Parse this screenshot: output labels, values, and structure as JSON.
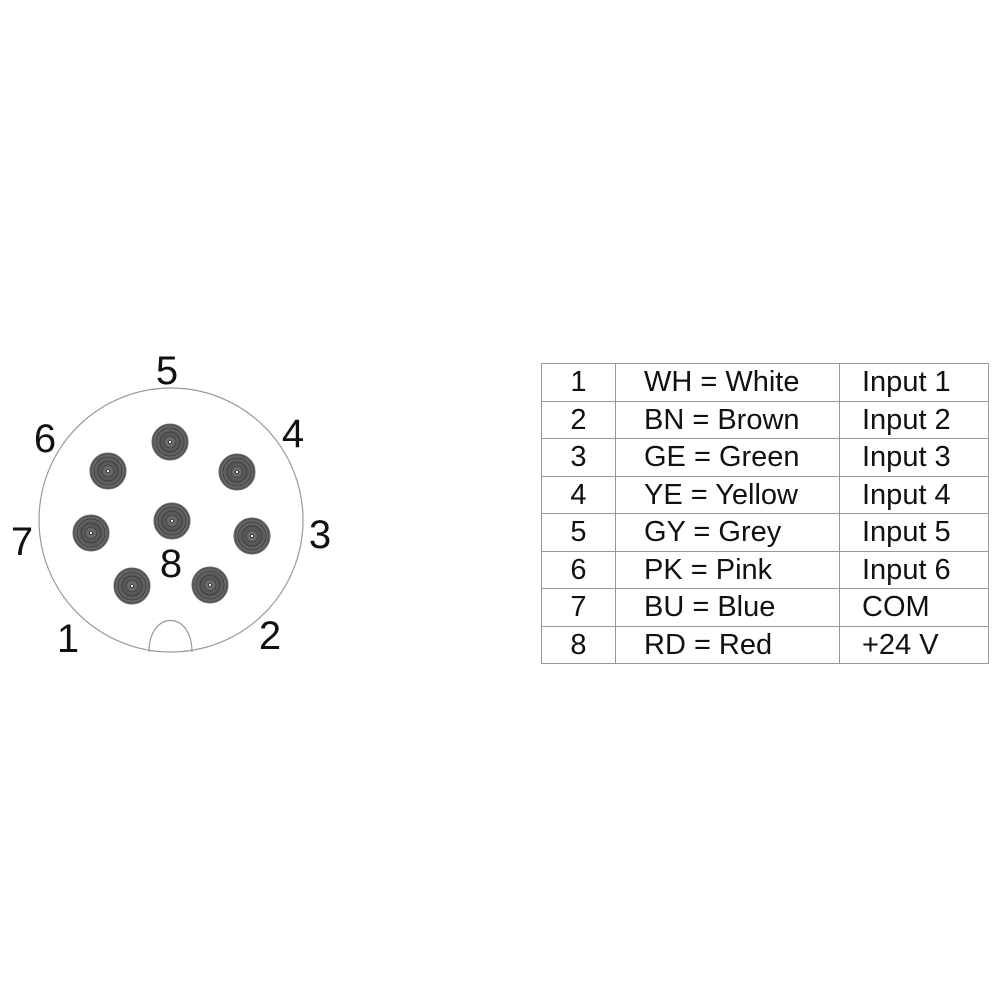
{
  "connector": {
    "pin_labels": [
      "1",
      "2",
      "3",
      "4",
      "5",
      "6",
      "7",
      "8"
    ]
  },
  "table": {
    "rows": [
      {
        "pin": "1",
        "wire": "WH = White",
        "function": "Input 1"
      },
      {
        "pin": "2",
        "wire": "BN = Brown",
        "function": "Input 2"
      },
      {
        "pin": "3",
        "wire": "GE = Green",
        "function": "Input 3"
      },
      {
        "pin": "4",
        "wire": "YE = Yellow",
        "function": "Input 4"
      },
      {
        "pin": "5",
        "wire": "GY = Grey",
        "function": "Input 5"
      },
      {
        "pin": "6",
        "wire": "PK = Pink",
        "function": "Input 6"
      },
      {
        "pin": "7",
        "wire": "BU = Blue",
        "function": "COM"
      },
      {
        "pin": "8",
        "wire": "RD = Red",
        "function": "+24 V"
      }
    ]
  }
}
